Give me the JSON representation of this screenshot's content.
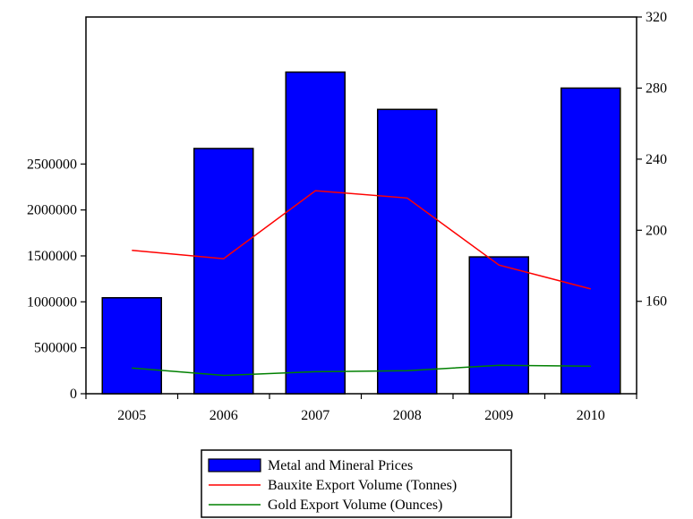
{
  "chart_data": {
    "type": "bar",
    "categories": [
      "2005",
      "2006",
      "2007",
      "2008",
      "2009",
      "2010"
    ],
    "bar_series": {
      "name": "Metal and Mineral Prices",
      "axis": "right",
      "color": "#0000ff",
      "values": [
        162,
        246,
        289,
        268,
        185,
        280
      ]
    },
    "line_series": [
      {
        "name": "Bauxite Export Volume (Tonnes)",
        "axis": "left",
        "color": "#ff0000",
        "values": [
          1560000,
          1470000,
          2210000,
          2130000,
          1400000,
          1140000
        ]
      },
      {
        "name": "Gold Export Volume (Ounces)",
        "axis": "left",
        "color": "#008000",
        "values": [
          280000,
          200000,
          240000,
          250000,
          310000,
          300000
        ]
      }
    ],
    "left_axis": {
      "ticks": [
        "0",
        "500000",
        "1000000",
        "1500000",
        "2000000",
        "2500000"
      ],
      "tick_values": [
        0,
        500000,
        1000000,
        1500000,
        2000000,
        2500000
      ],
      "ylim": [
        0,
        4100000
      ]
    },
    "right_axis": {
      "ticks": [
        "160",
        "200",
        "240",
        "280",
        "320"
      ],
      "tick_values": [
        160,
        200,
        240,
        280,
        320
      ],
      "ylim": [
        108,
        320
      ]
    },
    "legend": {
      "placement": "bottom-center",
      "entries": [
        {
          "label": "Metal and Mineral Prices",
          "marker": "bar",
          "color": "#0000ff"
        },
        {
          "label": "Bauxite Export Volume (Tonnes)",
          "marker": "line",
          "color": "#ff0000"
        },
        {
          "label": "Gold Export Volume (Ounces)",
          "marker": "line",
          "color": "#008000"
        }
      ]
    },
    "grid": false
  }
}
